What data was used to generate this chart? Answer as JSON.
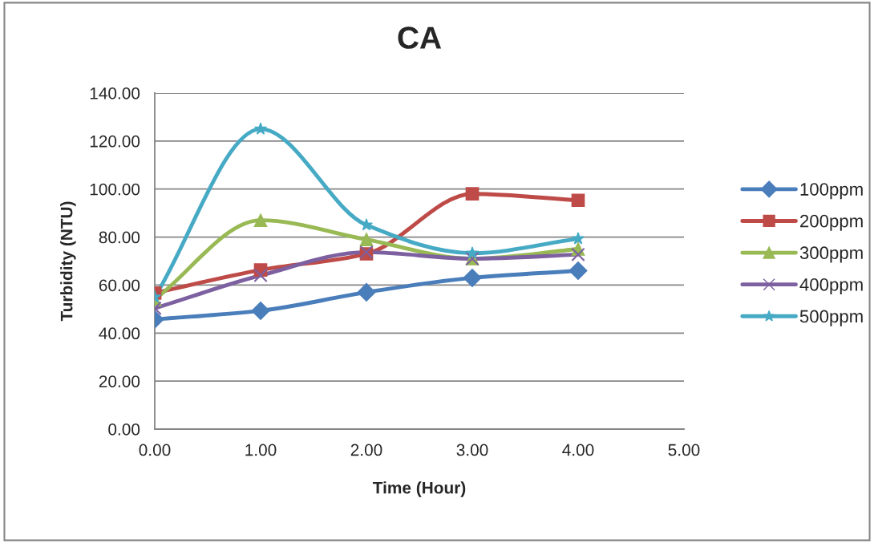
{
  "chart_data": {
    "type": "line",
    "title": "CA",
    "xlabel": "Time (Hour)",
    "ylabel": "Turbidity (NTU)",
    "x": [
      0,
      1,
      2,
      3,
      4
    ],
    "series": [
      {
        "name": "100ppm",
        "color": "#4a7ebb",
        "marker": "diamond",
        "values": [
          45.7,
          49.3,
          57.0,
          63.0,
          66.0
        ]
      },
      {
        "name": "200ppm",
        "color": "#be4b48",
        "marker": "square",
        "values": [
          56.7,
          66.3,
          73.0,
          98.0,
          95.3
        ]
      },
      {
        "name": "300ppm",
        "color": "#98b954",
        "marker": "triangle",
        "values": [
          54.0,
          87.0,
          79.0,
          71.0,
          75.0
        ]
      },
      {
        "name": "400ppm",
        "color": "#7d60a0",
        "marker": "cross",
        "values": [
          50.3,
          64.0,
          73.7,
          71.0,
          72.7
        ]
      },
      {
        "name": "500ppm",
        "color": "#46aac5",
        "marker": "star",
        "values": [
          55.0,
          125.0,
          85.0,
          73.3,
          79.3
        ]
      }
    ],
    "xlim": [
      0,
      5
    ],
    "xticks": [
      {
        "value": 0,
        "label": "0.00"
      },
      {
        "value": 1,
        "label": "1.00"
      },
      {
        "value": 2,
        "label": "2.00"
      },
      {
        "value": 3,
        "label": "3.00"
      },
      {
        "value": 4,
        "label": "4.00"
      },
      {
        "value": 5,
        "label": "5.00"
      }
    ],
    "ylim": [
      0,
      140
    ],
    "yticks": [
      {
        "value": 0,
        "label": "0.00"
      },
      {
        "value": 20,
        "label": "20.00"
      },
      {
        "value": 40,
        "label": "40.00"
      },
      {
        "value": 60,
        "label": "60.00"
      },
      {
        "value": 80,
        "label": "80.00"
      },
      {
        "value": 100,
        "label": "100.00"
      },
      {
        "value": 120,
        "label": "120.00"
      },
      {
        "value": 140,
        "label": "140.00"
      }
    ],
    "grid": "y",
    "legend": "right"
  }
}
